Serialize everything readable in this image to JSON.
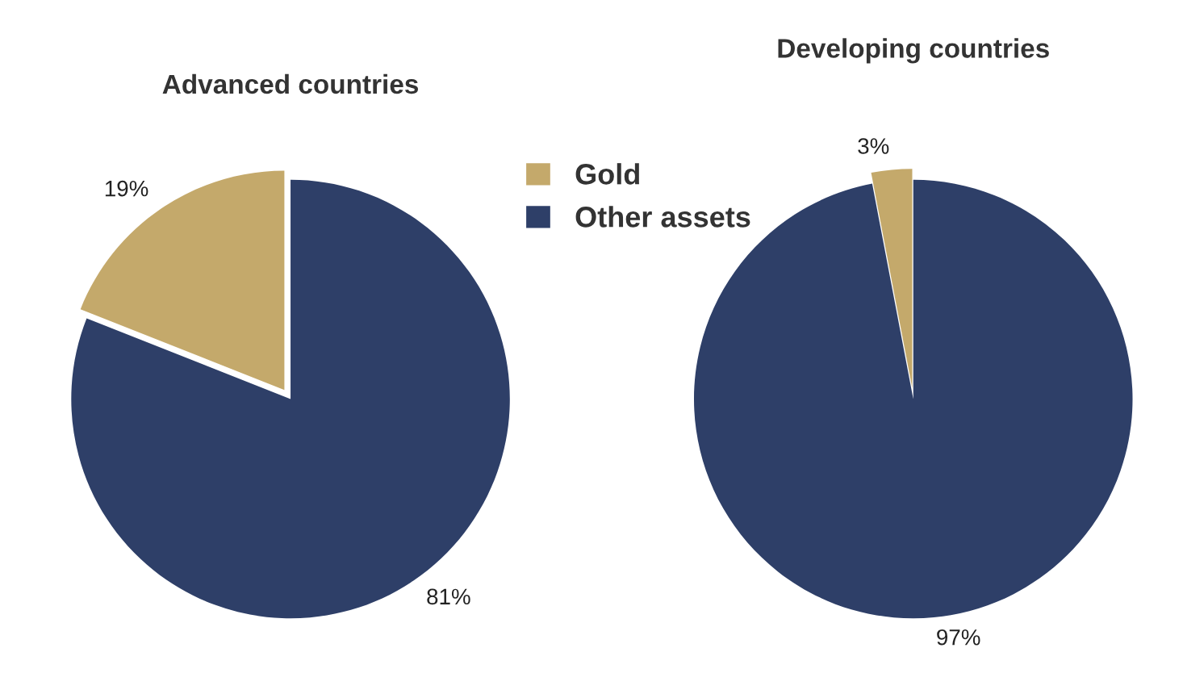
{
  "chart_data": [
    {
      "type": "pie",
      "title": "Advanced countries",
      "categories": [
        "Gold",
        "Other assets"
      ],
      "values": [
        19,
        81
      ],
      "colors": [
        "#c4a96b",
        "#2e3f68"
      ],
      "value_labels": [
        "19%",
        "81%"
      ],
      "legend": "right"
    },
    {
      "type": "pie",
      "title": "Developing countries",
      "categories": [
        null,
        null
      ],
      "values": [
        3,
        97
      ],
      "colors": [
        "#c4a96b",
        "#2e3f68"
      ],
      "value_labels": [
        "3%",
        "97%"
      ]
    }
  ]
}
